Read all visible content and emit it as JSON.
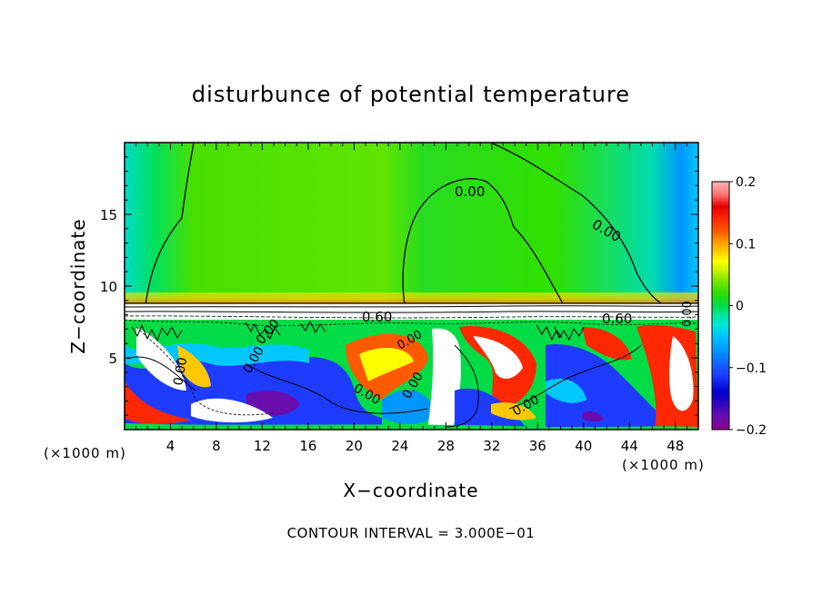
{
  "chart_data": {
    "type": "heatmap",
    "title": "disturbunce of potential temperature",
    "xlabel": "X−coordinate",
    "ylabel": "Z−coordinate",
    "x_unit": "(×1000 m)",
    "x_unit_right": "(×1000 m)",
    "xlim": [
      0,
      50
    ],
    "ylim": [
      0,
      20
    ],
    "xticks": [
      "4",
      "8",
      "12",
      "16",
      "20",
      "24",
      "28",
      "32",
      "36",
      "40",
      "44",
      "48"
    ],
    "yticks": [
      "5",
      "10",
      "15"
    ],
    "colorbar": {
      "range": [
        -0.2,
        0.2
      ],
      "tick_labels": [
        "0.2",
        "0.1",
        "0",
        "−0.1",
        "−0.2"
      ],
      "colors": [
        "#8b008b",
        "#6a0dad",
        "#0000cd",
        "#1e3cff",
        "#0096ff",
        "#00c8ff",
        "#00e6dc",
        "#00e6a0",
        "#00dc46",
        "#32dc00",
        "#78e600",
        "#c8f000",
        "#ffff00",
        "#ffc800",
        "#ff9600",
        "#ff5a00",
        "#ff2800",
        "#e60000",
        "#ff7878",
        "#ffb4b4"
      ]
    },
    "contour_labels": [
      "0.00",
      "0.00",
      "0.60",
      "0.60",
      "0.00",
      "0.00",
      "0.00",
      "0.00",
      "0.00",
      "0.00",
      "0.00",
      "0.00"
    ],
    "footer": "CONTOUR INTERVAL = 3.000E−01"
  }
}
